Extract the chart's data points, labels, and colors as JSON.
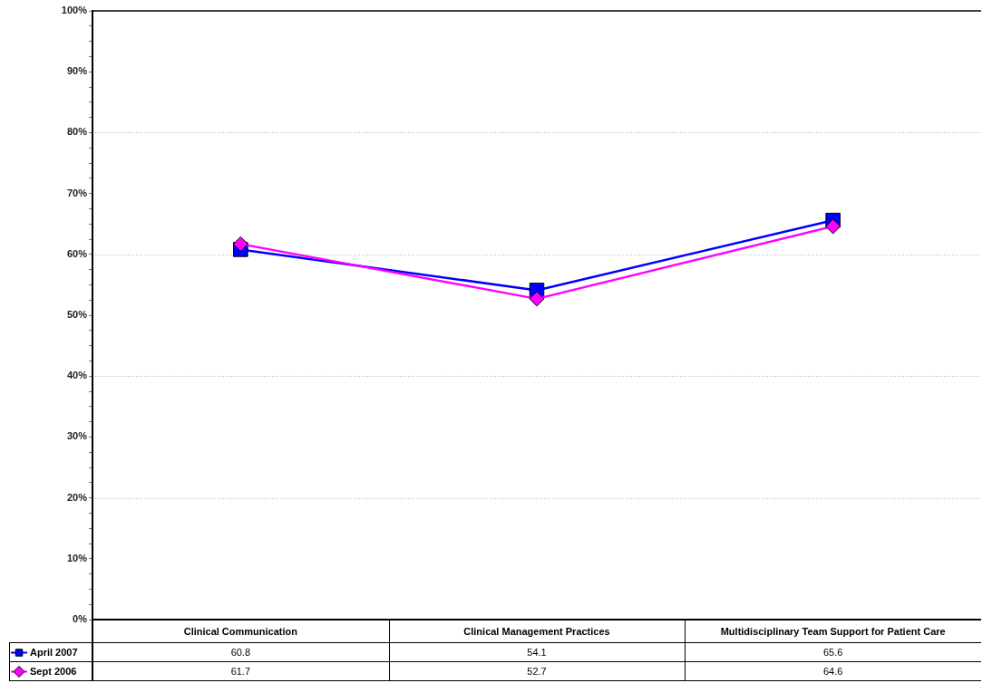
{
  "chart_data": {
    "type": "line",
    "categories": [
      "Clinical Communication",
      "Clinical Management Practices",
      "Multidisciplinary Team Support for Patient Care"
    ],
    "series": [
      {
        "name": "April 2007",
        "color": "#0000ff",
        "marker": "square",
        "values": [
          60.8,
          54.1,
          65.6
        ]
      },
      {
        "name": "Sept 2006",
        "color": "#ff00ff",
        "marker": "diamond",
        "values": [
          61.7,
          52.7,
          64.6
        ]
      }
    ],
    "ylim": [
      0,
      100
    ],
    "yticks": [
      {
        "value": 0,
        "label": "0%"
      },
      {
        "value": 2.5,
        "label": null
      },
      {
        "value": 5,
        "label": null
      },
      {
        "value": 7.5,
        "label": null
      },
      {
        "value": 10,
        "label": "10%"
      },
      {
        "value": 12.5,
        "label": null
      },
      {
        "value": 15,
        "label": null
      },
      {
        "value": 17.5,
        "label": null
      },
      {
        "value": 20,
        "label": "20%"
      },
      {
        "value": 22.5,
        "label": null
      },
      {
        "value": 25,
        "label": null
      },
      {
        "value": 27.5,
        "label": null
      },
      {
        "value": 30,
        "label": "30%"
      },
      {
        "value": 32.5,
        "label": null
      },
      {
        "value": 35,
        "label": null
      },
      {
        "value": 37.5,
        "label": null
      },
      {
        "value": 40,
        "label": "40%"
      },
      {
        "value": 42.5,
        "label": null
      },
      {
        "value": 45,
        "label": null
      },
      {
        "value": 47.5,
        "label": null
      },
      {
        "value": 50,
        "label": "50%"
      },
      {
        "value": 52.5,
        "label": null
      },
      {
        "value": 55,
        "label": null
      },
      {
        "value": 57.5,
        "label": null
      },
      {
        "value": 60,
        "label": "60%"
      },
      {
        "value": 62.5,
        "label": null
      },
      {
        "value": 65,
        "label": null
      },
      {
        "value": 67.5,
        "label": null
      },
      {
        "value": 70,
        "label": "70%"
      },
      {
        "value": 72.5,
        "label": null
      },
      {
        "value": 75,
        "label": null
      },
      {
        "value": 77.5,
        "label": null
      },
      {
        "value": 80,
        "label": "80%"
      },
      {
        "value": 82.5,
        "label": null
      },
      {
        "value": 85,
        "label": null
      },
      {
        "value": 87.5,
        "label": null
      },
      {
        "value": 90,
        "label": "90%"
      },
      {
        "value": 92.5,
        "label": null
      },
      {
        "value": 95,
        "label": null
      },
      {
        "value": 97.5,
        "label": null
      },
      {
        "value": 100,
        "label": "100%"
      }
    ],
    "grid": "y",
    "legend": "bottom left",
    "data_labels": true
  }
}
